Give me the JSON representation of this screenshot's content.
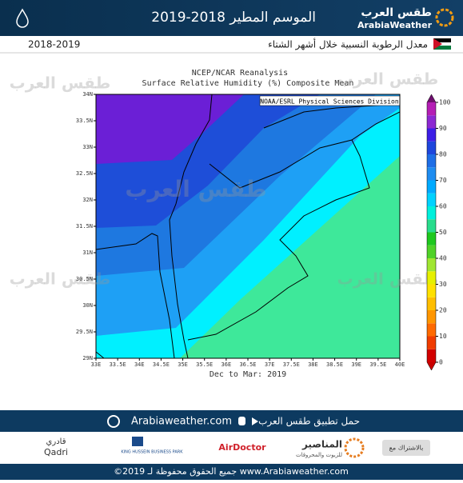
{
  "header": {
    "title": "الموسم المطير 2018-2019",
    "logo_ar": "طقس العرب",
    "logo_en": "ArabiaWeather"
  },
  "subheader": {
    "text": "معدل الرطوبة النسبية خلال أشهر الشتاء",
    "season": "2018-2019"
  },
  "map": {
    "title": "NCEP/NCAR Reanalysis",
    "subtitle": "Surface Relative Humidity (%) Composite Mean",
    "source": "NOAA/ESRL Physical Sciences Division",
    "period": "Dec to Mar: 2019",
    "lon_labels": [
      "33E",
      "33.5E",
      "34E",
      "34.5E",
      "35E",
      "35.5E",
      "36E",
      "36.5E",
      "37E",
      "37.5E",
      "38E",
      "38.5E",
      "39E",
      "39.5E",
      "40E"
    ],
    "lat_labels": [
      "29N",
      "29.5N",
      "30N",
      "30.5N",
      "31N",
      "31.5N",
      "32N",
      "32.5N",
      "33N",
      "33.5N",
      "34N"
    ],
    "colorbar": {
      "clim": [
        0,
        100
      ],
      "ticks": [
        0,
        10,
        20,
        30,
        40,
        50,
        60,
        70,
        80,
        90,
        100
      ],
      "under_color": "#c80000",
      "over_color": "#6e0f6e",
      "colors": [
        "#d20000",
        "#f03c00",
        "#ff6a00",
        "#ff9600",
        "#ffbe00",
        "#ffe100",
        "#e6f000",
        "#a0e632",
        "#50d228",
        "#1ec81e",
        "#28dc8c",
        "#00f0dc",
        "#00d2ff",
        "#00aaff",
        "#1e8cf0",
        "#1e6ee6",
        "#1e46dc",
        "#3c1ee6",
        "#8c28d2",
        "#b41eb4"
      ]
    }
  },
  "app_bar": {
    "text": "حمل تطبيق طقس العرب",
    "site": "Arabiaweather.com"
  },
  "sponsors": {
    "label": "بالاشتراك مع",
    "s1": "المناصير",
    "s1_sub": "للزيوت والمحروقات",
    "s2": "AirDoctor",
    "s3": "KING HUSSEIN BUSINESS PARK",
    "s4_ar": "قادري",
    "s4_en": "Qadri"
  },
  "footer": {
    "copyright": "©2019 جميع الحقوق محفوظة لـ www.Arabiaweather.com"
  }
}
